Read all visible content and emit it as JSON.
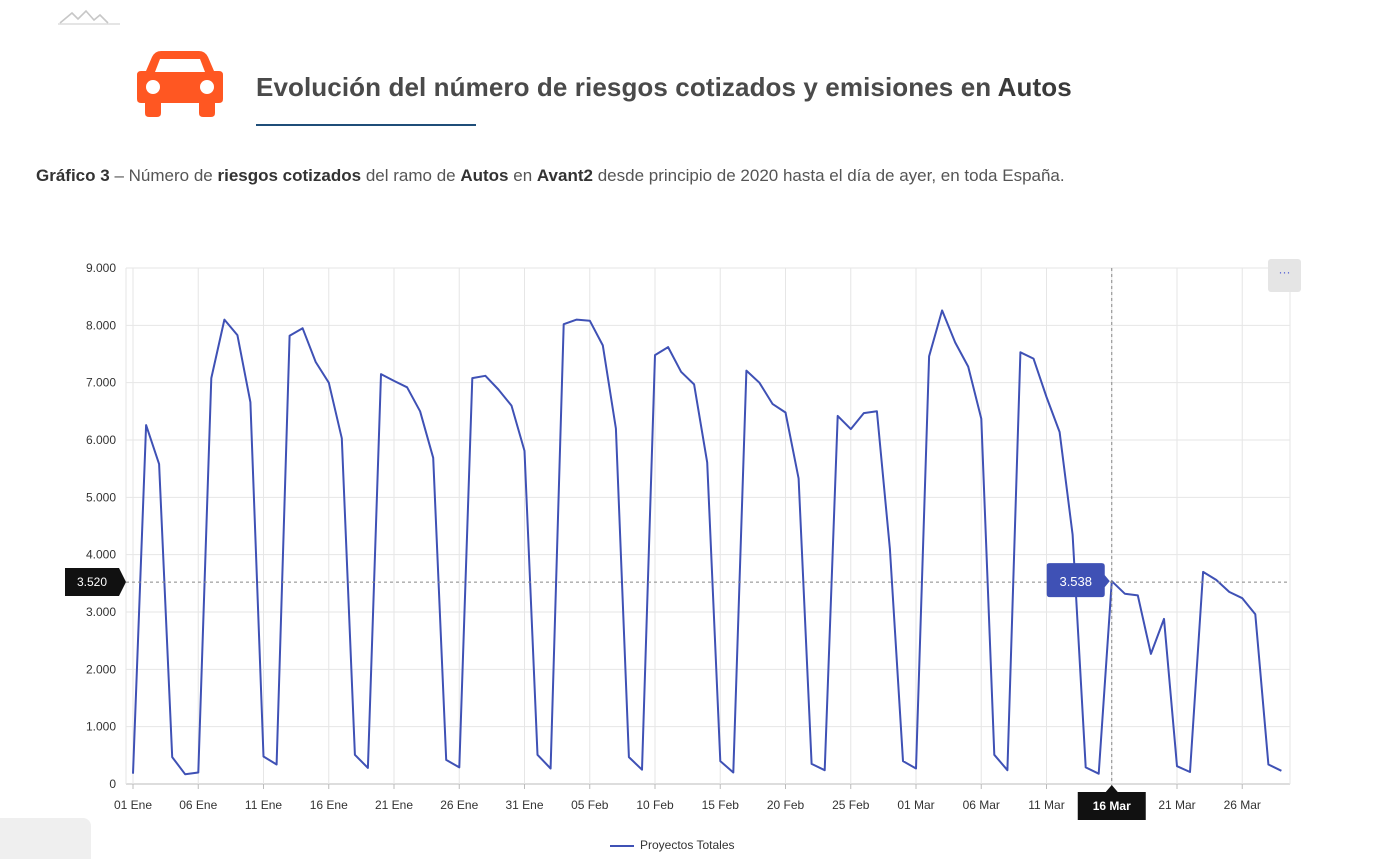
{
  "header": {
    "title_prefix": "Evolución del número de riesgos cotizados y emisiones en",
    "title_bold": "Autos",
    "car_icon": "car-icon",
    "logo_icon": "mountain-logo-icon"
  },
  "caption": {
    "label": "Gráfico 3",
    "dash": "–",
    "t1": "Número de",
    "b1": "riesgos cotizados",
    "t2": "del ramo de",
    "b2": "Autos",
    "t3": "en",
    "b3": "Avant2",
    "t4": "desde principio de 2020 hasta el día de ayer, en toda España."
  },
  "menu_label": "···",
  "colors": {
    "series": "#3f51b5",
    "tooltip": "#3f51b5",
    "accent_icon": "#ff5722",
    "title_rule": "#1f4e79"
  },
  "chart_data": {
    "type": "line",
    "title": "",
    "xlabel": "",
    "ylabel": "",
    "ylim": [
      0,
      9000
    ],
    "y_ticks": [
      0,
      1000,
      2000,
      3000,
      4000,
      5000,
      6000,
      7000,
      8000,
      9000
    ],
    "y_tick_labels": [
      "0",
      "1.000",
      "2.000",
      "3.000",
      "4.000",
      "5.000",
      "6.000",
      "7.000",
      "8.000",
      "9.000"
    ],
    "x_tick_labels": [
      "01 Ene",
      "06 Ene",
      "11 Ene",
      "16 Ene",
      "21 Ene",
      "26 Ene",
      "31 Ene",
      "05 Feb",
      "10 Feb",
      "15 Feb",
      "20 Feb",
      "25 Feb",
      "01 Mar",
      "06 Mar",
      "11 Mar",
      "16 Mar",
      "21 Mar",
      "26 Mar"
    ],
    "x_tick_days": [
      0,
      5,
      10,
      15,
      20,
      25,
      30,
      35,
      40,
      45,
      50,
      55,
      60,
      65,
      70,
      75,
      80,
      85
    ],
    "x_start": "01 Ene",
    "x_end": "29 Mar",
    "grid": true,
    "legend_position": "bottom-center",
    "series": [
      {
        "name": "Proyectos Totales",
        "values": [
          180,
          6260,
          5580,
          470,
          170,
          200,
          7080,
          8100,
          7830,
          6660,
          480,
          340,
          7820,
          7950,
          7360,
          7000,
          6030,
          510,
          280,
          7150,
          7030,
          6920,
          6500,
          5690,
          420,
          290,
          7080,
          7120,
          6880,
          6600,
          5810,
          510,
          270,
          8020,
          8100,
          8080,
          7650,
          6200,
          470,
          250,
          7480,
          7620,
          7190,
          6970,
          5610,
          400,
          200,
          7210,
          7000,
          6630,
          6480,
          5330,
          350,
          240,
          6420,
          6190,
          6470,
          6500,
          4100,
          400,
          270,
          7460,
          8260,
          7700,
          7280,
          6370,
          510,
          240,
          7530,
          7420,
          6750,
          6140,
          4350,
          290,
          180,
          3538,
          3320,
          3290,
          2270,
          2880,
          310,
          210,
          3700,
          3560,
          3350,
          3240,
          2960,
          340,
          230
        ]
      }
    ],
    "crosshair": {
      "x_label": "16 Mar",
      "y_label": "3.520",
      "point_label": "3.538"
    }
  }
}
